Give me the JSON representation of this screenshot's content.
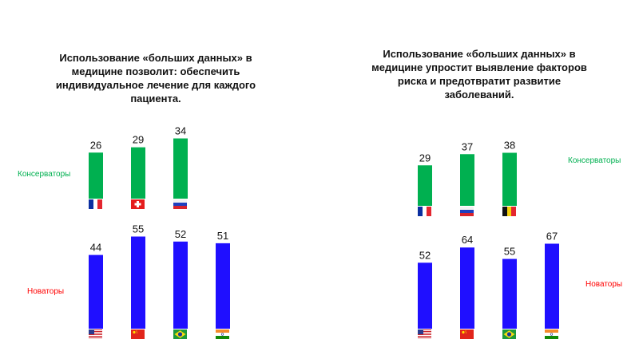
{
  "colors": {
    "conservators": "#00b050",
    "innovators": "#1f0fff",
    "conservators_label": "#00b050",
    "innovators_label": "#ff0000"
  },
  "chart_data": [
    {
      "type": "bar",
      "title": "Использование «больших данных» в медицине позволит: обеспечить индивидуальное лечение для каждого пациента.",
      "conservators_label": "Консерваторы",
      "innovators_label": "Новаторы",
      "series": [
        {
          "name": "Консерваторы",
          "categories": [
            "france-flag-icon",
            "switzerland-flag-icon",
            "russia-flag-icon"
          ],
          "values": [
            26,
            29,
            34
          ]
        },
        {
          "name": "Новаторы",
          "categories": [
            "usa-flag-icon",
            "china-flag-icon",
            "brazil-flag-icon",
            "india-flag-icon"
          ],
          "values": [
            44,
            55,
            52,
            51
          ]
        }
      ]
    },
    {
      "type": "bar",
      "title": "Использование «больших данных» в медицине упростит выявление факторов риска и предотвратит развитие заболеваний.",
      "conservators_label": "Консерваторы",
      "innovators_label": "Новаторы",
      "series": [
        {
          "name": "Консерваторы",
          "categories": [
            "france-flag-icon",
            "russia-flag-icon",
            "belgium-flag-icon"
          ],
          "values": [
            29,
            37,
            38
          ]
        },
        {
          "name": "Новаторы",
          "categories": [
            "usa-flag-icon",
            "china-flag-icon",
            "brazil-flag-icon",
            "india-flag-icon"
          ],
          "values": [
            52,
            64,
            55,
            67
          ]
        }
      ]
    }
  ]
}
